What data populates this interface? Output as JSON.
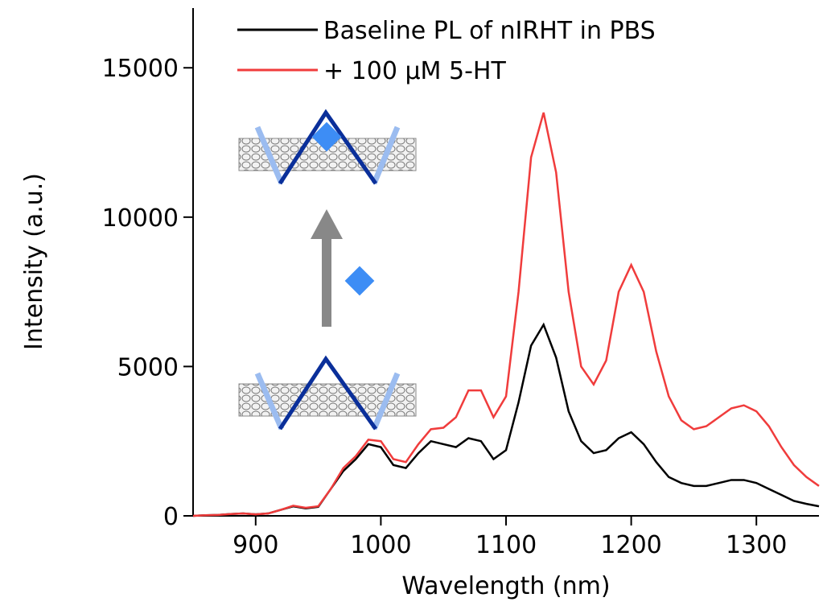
{
  "chart_data": {
    "type": "line",
    "x_label": "Wavelength (nm)",
    "y_label": "Intensity (a.u.)",
    "x": [
      850,
      860,
      870,
      880,
      890,
      900,
      910,
      920,
      930,
      940,
      950,
      960,
      970,
      980,
      990,
      1000,
      1010,
      1020,
      1030,
      1040,
      1050,
      1060,
      1070,
      1080,
      1090,
      1100,
      1110,
      1120,
      1130,
      1140,
      1150,
      1160,
      1170,
      1180,
      1190,
      1200,
      1210,
      1220,
      1230,
      1240,
      1250,
      1260,
      1270,
      1280,
      1290,
      1300,
      1310,
      1320,
      1330,
      1340,
      1350
    ],
    "series": [
      {
        "name": "Baseline PL of nIRHT in PBS",
        "color": "#000000",
        "values": [
          0,
          20,
          30,
          60,
          80,
          50,
          80,
          200,
          320,
          250,
          300,
          900,
          1500,
          1900,
          2400,
          2300,
          1700,
          1600,
          2100,
          2500,
          2400,
          2300,
          2600,
          2500,
          1900,
          2200,
          3800,
          5700,
          6400,
          5300,
          3500,
          2500,
          2100,
          2200,
          2600,
          2800,
          2400,
          1800,
          1300,
          1100,
          1000,
          1000,
          1100,
          1200,
          1200,
          1100,
          900,
          700,
          500,
          400,
          320
        ]
      },
      {
        "name": "+ 100 μM 5-HT",
        "color": "#f03c3c",
        "values": [
          0,
          20,
          30,
          60,
          80,
          50,
          80,
          200,
          340,
          270,
          320,
          900,
          1600,
          2000,
          2550,
          2500,
          1900,
          1800,
          2400,
          2900,
          2950,
          3300,
          4200,
          4200,
          3300,
          4000,
          7500,
          12000,
          13500,
          11500,
          7500,
          5000,
          4400,
          5200,
          7500,
          8400,
          7500,
          5500,
          4000,
          3200,
          2900,
          3000,
          3300,
          3600,
          3700,
          3500,
          3000,
          2300,
          1700,
          1300,
          1000
        ]
      }
    ],
    "xlim": [
      850,
      1350
    ],
    "xticks": [
      900,
      1000,
      1100,
      1200,
      1300
    ],
    "ylim": [
      0,
      17000
    ],
    "yticks": [
      0,
      5000,
      10000,
      15000
    ],
    "legend": "top-left"
  }
}
